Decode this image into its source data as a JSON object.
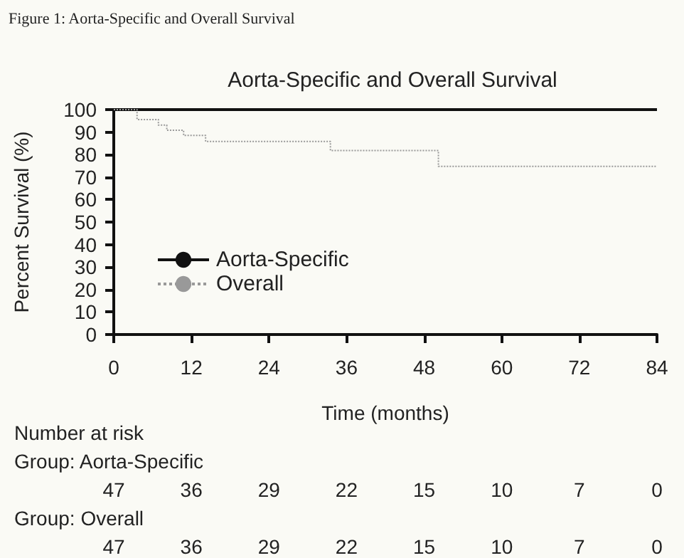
{
  "chart_data": {
    "type": "step",
    "title": "Aorta-Specific and Overall Survival",
    "xlabel": "Time (months)",
    "ylabel": "Percent Survival (%)",
    "series": [
      {
        "name": "Aorta-Specific",
        "color": "#111111",
        "line_style": "solid",
        "x": [
          0,
          84
        ],
        "values": [
          100,
          100
        ]
      },
      {
        "name": "Overall",
        "color": "#999999",
        "line_style": "dotted",
        "x": [
          0,
          3.6,
          6.9,
          8.2,
          10.8,
          14.2,
          33.5,
          50.2,
          84
        ],
        "values": [
          100,
          95.6,
          93.1,
          90.8,
          88.5,
          85.8,
          81.8,
          74.8,
          74.8
        ]
      }
    ],
    "xlim": [
      0,
      84
    ],
    "xticks": [
      0,
      12,
      24,
      36,
      48,
      60,
      72,
      84
    ],
    "ylim": [
      0,
      100
    ],
    "yticks": [
      0,
      10,
      20,
      30,
      40,
      50,
      60,
      70,
      80,
      90,
      100
    ],
    "grid": false,
    "legend": "bottom left",
    "marker": "none",
    "annotations": [
      "Figure 1: Aorta-Specific and Overall Survival",
      "Number at risk",
      "Group: Aorta-Specific",
      "47",
      "36",
      "29",
      "22",
      "15",
      "10",
      "7",
      "0",
      "Group: Overall",
      "47",
      "36",
      "29",
      "22",
      "15",
      "10",
      "7",
      "0"
    ]
  }
}
